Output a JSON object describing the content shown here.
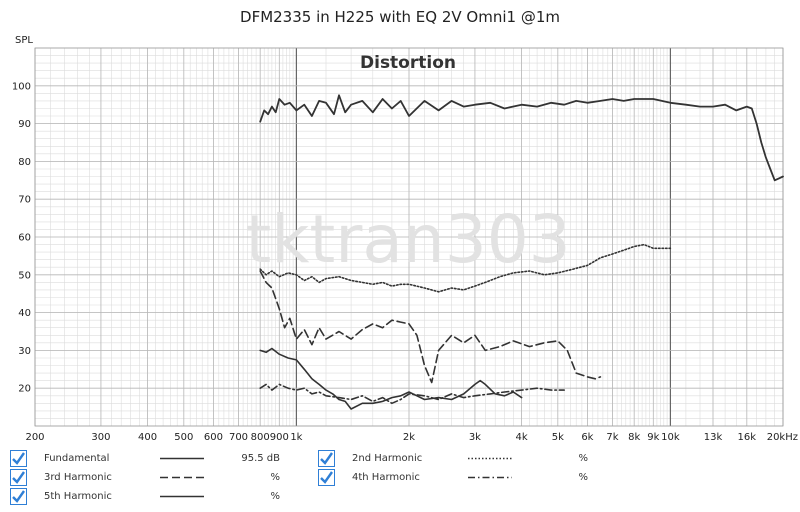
{
  "chart_data": {
    "type": "line",
    "title": "DFM2335 in H225 with EQ 2V Omni1 @1m",
    "subtitle": "Distortion",
    "watermark": "tktran303",
    "ylabel": "SPL",
    "x_scale": "log",
    "xlim": [
      200,
      20000
    ],
    "ylim": [
      10,
      110
    ],
    "x_ticks": [
      {
        "v": 200,
        "label": "200"
      },
      {
        "v": 300,
        "label": "300"
      },
      {
        "v": 400,
        "label": "400"
      },
      {
        "v": 500,
        "label": "500"
      },
      {
        "v": 600,
        "label": "600"
      },
      {
        "v": 700,
        "label": "700"
      },
      {
        "v": 800,
        "label": "800"
      },
      {
        "v": 900,
        "label": "900"
      },
      {
        "v": 1000,
        "label": "1k"
      },
      {
        "v": 2000,
        "label": "2k"
      },
      {
        "v": 3000,
        "label": "3k"
      },
      {
        "v": 4000,
        "label": "4k"
      },
      {
        "v": 5000,
        "label": "5k"
      },
      {
        "v": 6000,
        "label": "6k"
      },
      {
        "v": 7000,
        "label": "7k"
      },
      {
        "v": 8000,
        "label": "8k"
      },
      {
        "v": 9000,
        "label": "9k"
      },
      {
        "v": 10000,
        "label": "10k"
      },
      {
        "v": 13000,
        "label": "13k"
      },
      {
        "v": 16000,
        "label": "16k"
      },
      {
        "v": 20000,
        "label": "20kHz"
      }
    ],
    "y_ticks": [
      20,
      30,
      40,
      50,
      60,
      70,
      80,
      90,
      100
    ],
    "grid": true,
    "legend_position": "bottom",
    "series": [
      {
        "name": "Fundamental",
        "value": "95.5 dB",
        "dash": "solid",
        "color": "#333333",
        "x": [
          800,
          820,
          840,
          860,
          880,
          900,
          930,
          960,
          1000,
          1050,
          1100,
          1150,
          1200,
          1260,
          1300,
          1350,
          1400,
          1500,
          1600,
          1700,
          1800,
          1900,
          2000,
          2200,
          2400,
          2600,
          2800,
          3000,
          3300,
          3600,
          4000,
          4400,
          4800,
          5200,
          5600,
          6000,
          6500,
          7000,
          7500,
          8000,
          9000,
          10000,
          11000,
          12000,
          13000,
          14000,
          15000,
          16000,
          16500,
          17000,
          17500,
          18000,
          18500,
          19000,
          19500,
          20000
        ],
        "y": [
          90.5,
          93.5,
          92.5,
          94.5,
          93.0,
          96.5,
          95.0,
          95.5,
          93.5,
          95.0,
          92.0,
          96.0,
          95.5,
          92.5,
          97.5,
          93.0,
          95.0,
          96.0,
          93.0,
          96.5,
          94.0,
          96.0,
          92.0,
          96.0,
          93.5,
          96.0,
          94.5,
          95.0,
          95.5,
          94.0,
          95.0,
          94.5,
          95.5,
          95.0,
          96.0,
          95.5,
          96.0,
          96.5,
          96.0,
          96.5,
          96.5,
          95.5,
          95.0,
          94.5,
          94.5,
          95.0,
          93.5,
          94.5,
          94.0,
          90.0,
          85.0,
          81.0,
          78.0,
          75.0,
          75.5,
          76.0
        ]
      },
      {
        "name": "2nd Harmonic",
        "value": "%",
        "dash": "dotted",
        "color": "#333333",
        "x": [
          800,
          830,
          860,
          900,
          950,
          1000,
          1050,
          1100,
          1150,
          1200,
          1300,
          1400,
          1500,
          1600,
          1700,
          1800,
          1900,
          2000,
          2200,
          2400,
          2600,
          2800,
          3000,
          3200,
          3500,
          3800,
          4200,
          4600,
          5000,
          5500,
          6000,
          6500,
          7000,
          7500,
          8000,
          8500,
          9000,
          10000
        ],
        "y": [
          51.5,
          50.0,
          51.0,
          49.5,
          50.5,
          50.0,
          48.5,
          49.5,
          48.0,
          49.0,
          49.5,
          48.5,
          48.0,
          47.5,
          48.0,
          47.0,
          47.5,
          47.5,
          46.5,
          45.5,
          46.5,
          46.0,
          47.0,
          48.0,
          49.5,
          50.5,
          51.0,
          50.0,
          50.5,
          51.5,
          52.5,
          54.5,
          55.5,
          56.5,
          57.5,
          58.0,
          57.0,
          57.0
        ]
      },
      {
        "name": "3rd Harmonic",
        "value": "%",
        "dash": "dashed",
        "color": "#333333",
        "x": [
          800,
          830,
          860,
          900,
          930,
          960,
          1000,
          1050,
          1100,
          1150,
          1200,
          1300,
          1400,
          1500,
          1600,
          1700,
          1800,
          1900,
          2000,
          2100,
          2200,
          2300,
          2400,
          2600,
          2800,
          3000,
          3200,
          3500,
          3800,
          4200,
          4600,
          5000,
          5300,
          5600,
          6000,
          6300,
          6500
        ],
        "y": [
          51.0,
          48.0,
          46.5,
          41.0,
          36.0,
          38.5,
          33.0,
          35.5,
          31.5,
          36.0,
          33.0,
          35.0,
          33.0,
          35.5,
          37.0,
          36.0,
          38.0,
          37.5,
          37.0,
          34.0,
          26.0,
          21.5,
          30.0,
          34.0,
          32.0,
          34.0,
          30.0,
          31.0,
          32.5,
          31.0,
          32.0,
          32.5,
          30.0,
          24.0,
          23.0,
          22.5,
          23.0
        ]
      },
      {
        "name": "4th Harmonic",
        "value": "%",
        "dash": "dashdot",
        "color": "#333333",
        "x": [
          800,
          830,
          860,
          900,
          950,
          1000,
          1050,
          1100,
          1150,
          1200,
          1300,
          1400,
          1500,
          1600,
          1700,
          1800,
          1900,
          2000,
          2200,
          2400,
          2600,
          2800,
          3000,
          3300,
          3600,
          4000,
          4400,
          4800,
          5200
        ],
        "y": [
          20.0,
          21.0,
          19.5,
          21.0,
          20.0,
          19.5,
          20.0,
          18.5,
          19.0,
          18.0,
          17.5,
          17.0,
          18.0,
          16.5,
          17.5,
          16.0,
          17.0,
          18.5,
          18.0,
          17.0,
          18.5,
          17.5,
          18.0,
          18.5,
          19.0,
          19.5,
          20.0,
          19.5,
          19.5
        ]
      },
      {
        "name": "5th Harmonic",
        "value": "%",
        "dash": "solid",
        "color": "#333333",
        "x": [
          800,
          830,
          860,
          900,
          950,
          1000,
          1050,
          1100,
          1150,
          1200,
          1250,
          1300,
          1350,
          1400,
          1500,
          1600,
          1700,
          1800,
          1900,
          2000,
          2100,
          2200,
          2400,
          2600,
          2800,
          3000,
          3100,
          3200,
          3400,
          3600,
          3800,
          4000
        ],
        "y": [
          30.0,
          29.5,
          30.5,
          29.0,
          28.0,
          27.5,
          25.0,
          22.5,
          21.0,
          19.5,
          18.5,
          17.0,
          16.5,
          14.5,
          16.0,
          16.0,
          16.5,
          17.5,
          18.0,
          19.0,
          18.0,
          17.0,
          17.5,
          17.0,
          18.5,
          21.0,
          22.0,
          21.0,
          18.5,
          18.0,
          19.0,
          17.5
        ]
      }
    ]
  },
  "legend": [
    {
      "id": "fundamental",
      "label": "Fundamental",
      "value": "95.5 dB",
      "dash": "solid",
      "checked": true
    },
    {
      "id": "2nd-harmonic",
      "label": "2nd Harmonic",
      "value": "%",
      "dash": "dotted",
      "checked": true
    },
    {
      "id": "3rd-harmonic",
      "label": "3rd Harmonic",
      "value": "%",
      "dash": "dashed",
      "checked": true
    },
    {
      "id": "4th-harmonic",
      "label": "4th Harmonic",
      "value": "%",
      "dash": "dashdot",
      "checked": true
    },
    {
      "id": "5th-harmonic",
      "label": "5th Harmonic",
      "value": "%",
      "dash": "solid",
      "checked": true
    }
  ],
  "colors": {
    "check": "#2f7fd6",
    "line": "#333333",
    "grid_major": "#b8b8b8",
    "grid_minor": "#dcdcdc"
  }
}
